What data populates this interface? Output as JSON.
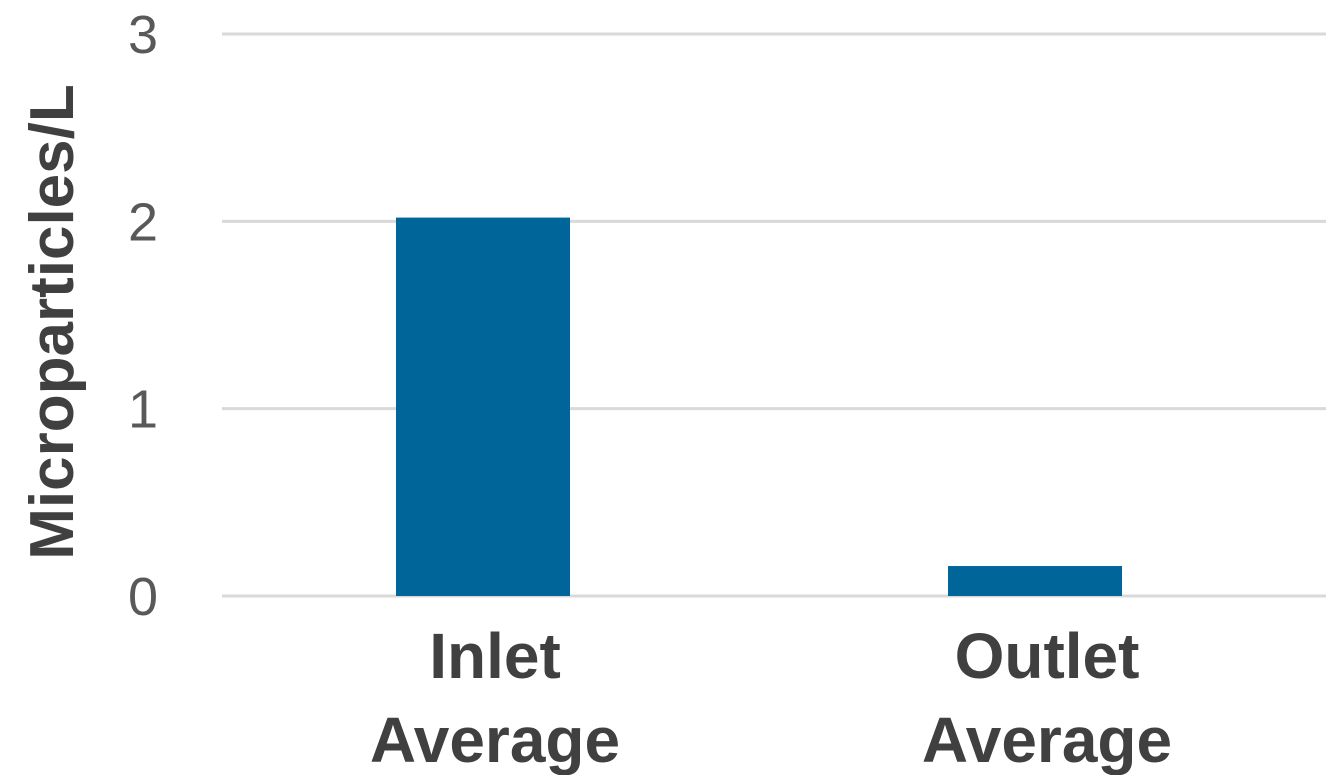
{
  "chart_data": {
    "type": "bar",
    "title": "",
    "xlabel": "",
    "ylabel": "Microparticles/L",
    "categories": [
      [
        "Inlet",
        "Average"
      ],
      [
        "Outlet",
        "Average"
      ]
    ],
    "values": [
      2.02,
      0.16
    ],
    "ylim": [
      0,
      3
    ],
    "yticks": [
      0,
      1,
      2,
      3
    ],
    "grid": true,
    "colors": {
      "bar": "#006699",
      "grid": "#d9d9d9",
      "tick_text": "#595959",
      "label_text": "#404040"
    }
  }
}
